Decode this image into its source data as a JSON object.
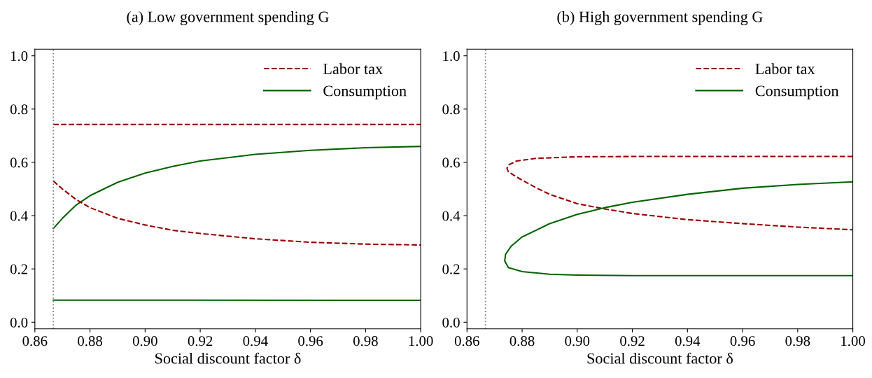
{
  "chart_data": [
    {
      "type": "line",
      "title": "(a) Low government spending G",
      "xlabel": "Social discount factor δ",
      "xlim": [
        0.86,
        1.0
      ],
      "ylim": [
        -0.025,
        1.025
      ],
      "xticks": [
        {
          "value": 0.86,
          "label": "0.86"
        },
        {
          "value": 0.88,
          "label": "0.88"
        },
        {
          "value": 0.9,
          "label": "0.90"
        },
        {
          "value": 0.92,
          "label": "0.92"
        },
        {
          "value": 0.94,
          "label": "0.94"
        },
        {
          "value": 0.96,
          "label": "0.96"
        },
        {
          "value": 0.98,
          "label": "0.98"
        },
        {
          "value": 1.0,
          "label": "1.00"
        }
      ],
      "yticks": [
        {
          "value": 0,
          "label": "0.0"
        },
        {
          "value": 0.2,
          "label": "0.2"
        },
        {
          "value": 0.4,
          "label": "0.4"
        },
        {
          "value": 0.6,
          "label": "0.6"
        },
        {
          "value": 0.8,
          "label": "0.8"
        },
        {
          "value": 1.0,
          "label": "1.0"
        }
      ],
      "grid": false,
      "legend": "top right",
      "marker": "none",
      "ref_lines": [
        {
          "axis": "x",
          "value": 0.8667,
          "color": "#808080",
          "line_style": "dotted"
        }
      ],
      "series": [
        {
          "name": "Labor tax",
          "color": "#990000",
          "line_style": "dashed",
          "x": [
            0.8667,
            1.0
          ],
          "values": [
            0.742,
            0.742
          ]
        },
        {
          "name": "Consumption",
          "color": "#006400",
          "line_style": "solid",
          "x": [
            0.8667,
            0.87,
            0.875,
            0.88,
            0.89,
            0.9,
            0.91,
            0.92,
            0.94,
            0.96,
            0.98,
            1.0
          ],
          "values": [
            0.352,
            0.39,
            0.44,
            0.475,
            0.525,
            0.56,
            0.585,
            0.605,
            0.63,
            0.645,
            0.655,
            0.66
          ]
        },
        {
          "color": "#990000",
          "line_style": "dashed",
          "x": [
            0.8667,
            0.87,
            0.875,
            0.88,
            0.89,
            0.9,
            0.91,
            0.92,
            0.94,
            0.96,
            0.98,
            1.0
          ],
          "values": [
            0.53,
            0.5,
            0.46,
            0.43,
            0.39,
            0.365,
            0.345,
            0.333,
            0.313,
            0.3,
            0.293,
            0.29
          ]
        },
        {
          "color": "#006400",
          "line_style": "solid",
          "x": [
            0.8667,
            1.0
          ],
          "values": [
            0.083,
            0.082
          ]
        }
      ]
    },
    {
      "type": "line",
      "title": "(b) High government spending G",
      "xlabel": "Social discount factor δ",
      "xlim": [
        0.86,
        1.0
      ],
      "ylim": [
        -0.025,
        1.025
      ],
      "xticks": [
        {
          "value": 0.86,
          "label": "0.86"
        },
        {
          "value": 0.88,
          "label": "0.88"
        },
        {
          "value": 0.9,
          "label": "0.90"
        },
        {
          "value": 0.92,
          "label": "0.92"
        },
        {
          "value": 0.94,
          "label": "0.94"
        },
        {
          "value": 0.96,
          "label": "0.96"
        },
        {
          "value": 0.98,
          "label": "0.98"
        },
        {
          "value": 1.0,
          "label": "1.00"
        }
      ],
      "yticks": [
        {
          "value": 0,
          "label": "0.0"
        },
        {
          "value": 0.2,
          "label": "0.2"
        },
        {
          "value": 0.4,
          "label": "0.4"
        },
        {
          "value": 0.6,
          "label": "0.6"
        },
        {
          "value": 0.8,
          "label": "0.8"
        },
        {
          "value": 1.0,
          "label": "1.0"
        }
      ],
      "grid": false,
      "legend": "top right",
      "marker": "none",
      "ref_lines": [
        {
          "axis": "x",
          "value": 0.8667,
          "color": "#808080",
          "line_style": "dotted"
        }
      ],
      "series": [
        {
          "name": "Labor tax",
          "color": "#990000",
          "line_style": "dashed",
          "x": [
            1.0,
            0.96,
            0.92,
            0.9,
            0.885,
            0.878,
            0.875,
            0.8745,
            0.875,
            0.878,
            0.885,
            0.89,
            0.9,
            0.91,
            0.92,
            0.94,
            0.96,
            0.98,
            1.0
          ],
          "values": [
            0.622,
            0.622,
            0.622,
            0.621,
            0.615,
            0.605,
            0.59,
            0.578,
            0.565,
            0.545,
            0.505,
            0.48,
            0.445,
            0.425,
            0.408,
            0.385,
            0.37,
            0.357,
            0.347
          ]
        },
        {
          "name": "Consumption",
          "color": "#006400",
          "line_style": "solid",
          "x": [
            1.0,
            0.98,
            0.96,
            0.94,
            0.92,
            0.91,
            0.9,
            0.89,
            0.88,
            0.876,
            0.874,
            0.8737,
            0.875,
            0.88,
            0.89,
            0.9,
            0.92,
            1.0
          ],
          "values": [
            0.527,
            0.517,
            0.503,
            0.48,
            0.45,
            0.43,
            0.405,
            0.37,
            0.32,
            0.285,
            0.255,
            0.23,
            0.205,
            0.19,
            0.18,
            0.177,
            0.175,
            0.175
          ]
        }
      ]
    }
  ]
}
